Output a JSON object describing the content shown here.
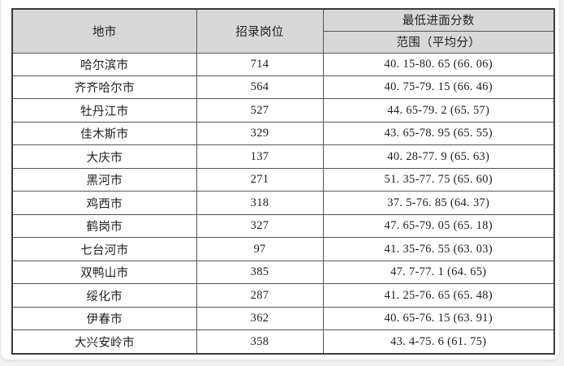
{
  "table": {
    "headers": {
      "city": "地市",
      "positions": "招录岗位",
      "score_group": "最低进面分数",
      "score_sub": "范围（平均分）"
    },
    "rows": [
      {
        "city": "哈尔滨市",
        "positions": "714",
        "score": "40. 15-80. 65 (66. 06)"
      },
      {
        "city": "齐齐哈尔市",
        "positions": "564",
        "score": "40. 75-79. 15 (66. 46)"
      },
      {
        "city": "牡丹江市",
        "positions": "527",
        "score": "44. 65-79. 2 (65. 57)"
      },
      {
        "city": "佳木斯市",
        "positions": "329",
        "score": "43. 65-78. 95 (65. 55)"
      },
      {
        "city": "大庆市",
        "positions": "137",
        "score": "40. 28-77. 9 (65. 63)"
      },
      {
        "city": "黑河市",
        "positions": "271",
        "score": "51. 35-77. 75 (65. 60)"
      },
      {
        "city": "鸡西市",
        "positions": "318",
        "score": "37. 5-76. 85 (64. 37)"
      },
      {
        "city": "鹤岗市",
        "positions": "327",
        "score": "47. 65-79. 05 (65. 18)"
      },
      {
        "city": "七台河市",
        "positions": "97",
        "score": "41. 35-76. 55 (63. 03)"
      },
      {
        "city": "双鸭山市",
        "positions": "385",
        "score": "47. 7-77. 1 (64. 65)"
      },
      {
        "city": "绥化市",
        "positions": "287",
        "score": "41. 25-76. 65 (65. 48)"
      },
      {
        "city": "伊春市",
        "positions": "362",
        "score": "40. 65-76. 15 (63. 91)"
      },
      {
        "city": "大兴安岭市",
        "positions": "358",
        "score": "43. 4-75. 6 (61. 75)"
      }
    ]
  },
  "colors": {
    "page_bg": "#f0f0f0",
    "card_bg": "#ffffff",
    "header_bg": "#d8d8d8",
    "border_inner": "#555555",
    "border_outer": "#3c3c3c",
    "text": "#1f1f1f"
  }
}
